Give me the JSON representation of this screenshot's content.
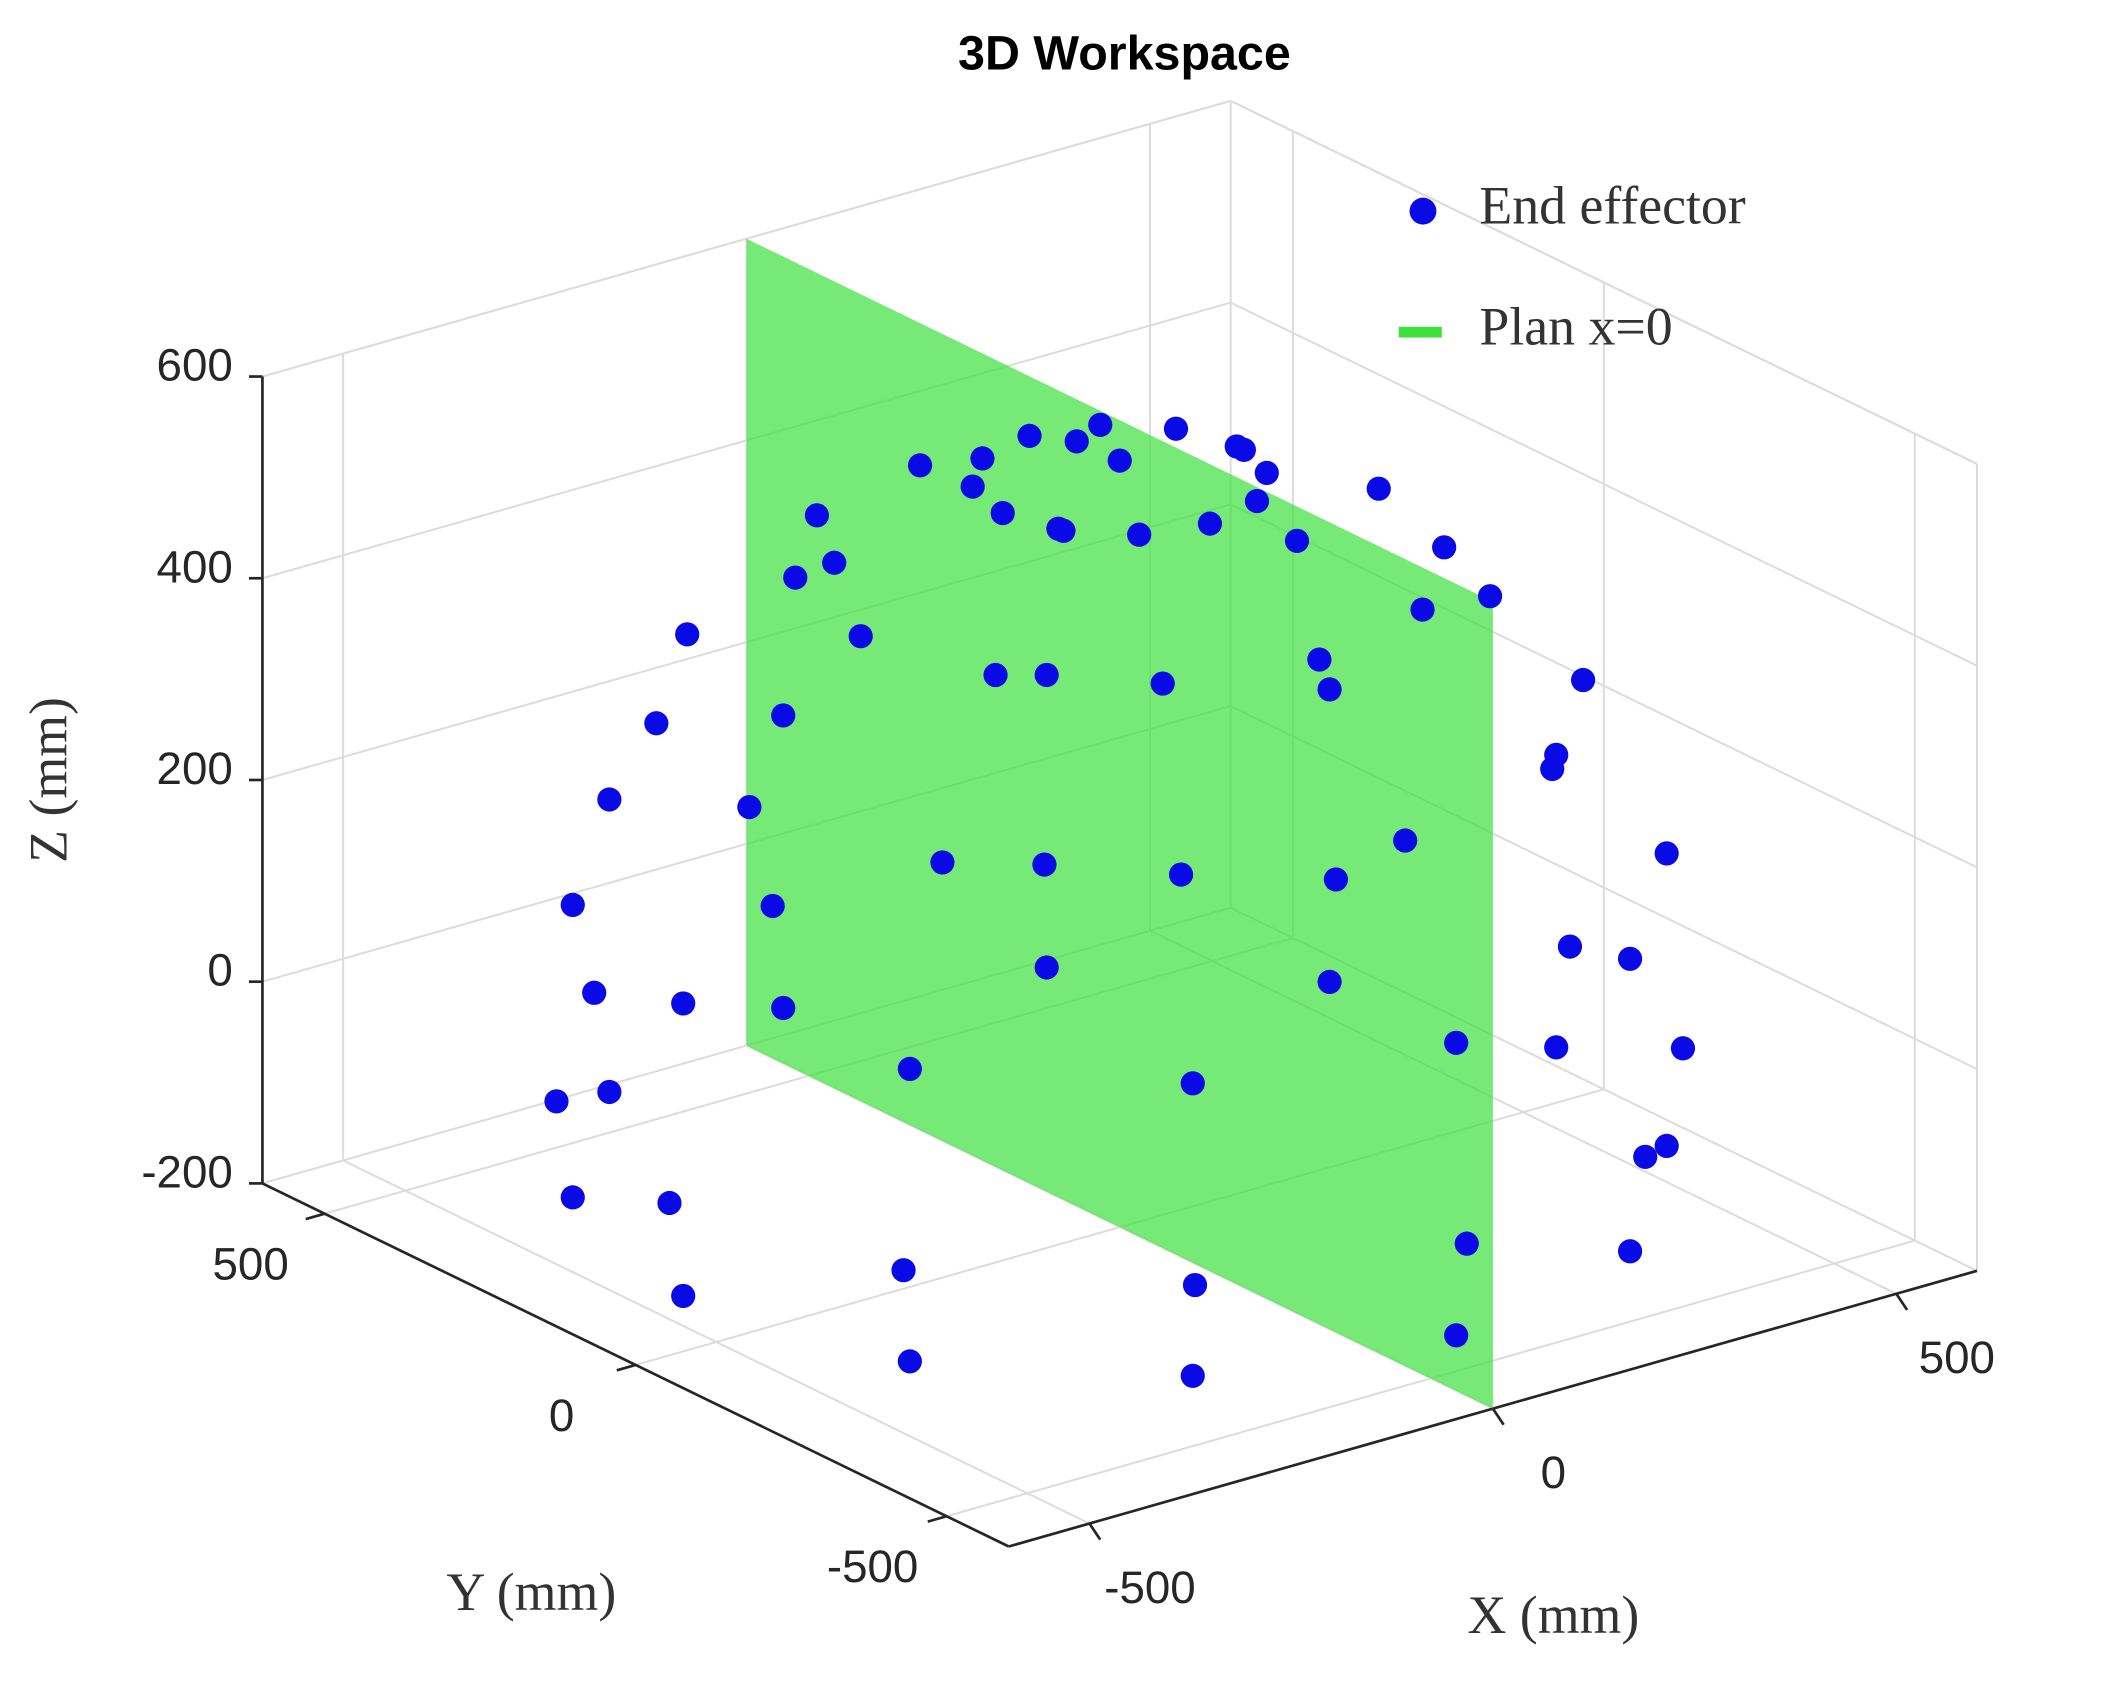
{
  "chart_data": {
    "type": "scatter3d",
    "title": "3D Workspace",
    "xlabel": "X (mm)",
    "ylabel": "Y (mm)",
    "zlabel": "Z (mm)",
    "xlim": [
      -600,
      600
    ],
    "ylim": [
      -600,
      600
    ],
    "zlim": [
      -200,
      600
    ],
    "xticks": [
      -500,
      0,
      500
    ],
    "yticks": [
      -500,
      0,
      500
    ],
    "zticks": [
      -200,
      0,
      200,
      400,
      600
    ],
    "grid": true,
    "legend": "northeast",
    "series": [
      {
        "name": "End effector",
        "color": "#0a0ae6",
        "x": [
          0,
          145,
          126,
          73,
          0,
          -73,
          -126,
          -145,
          -126,
          -73,
          0,
          73,
          126,
          321,
          278,
          161,
          0,
          -161,
          -278,
          -321,
          -278,
          -161,
          0,
          161,
          278,
          459,
          397,
          230,
          0,
          -230,
          -397,
          -459,
          -397,
          -230,
          0,
          230,
          397,
          541,
          469,
          271,
          0,
          -271,
          -469,
          -541,
          -469,
          -271,
          0,
          271,
          469,
          558,
          483,
          279,
          0,
          -279,
          -483,
          -558,
          -483,
          -279,
          0,
          279,
          483,
          541,
          469,
          271,
          0,
          -271,
          -469,
          -541,
          -469,
          -271,
          0,
          271,
          469
        ],
        "y": [
          0,
          0,
          73,
          126,
          145,
          126,
          73,
          0,
          -73,
          -126,
          -145,
          -126,
          -73,
          0,
          161,
          278,
          321,
          278,
          161,
          0,
          -161,
          -278,
          -321,
          -278,
          -161,
          0,
          230,
          397,
          459,
          397,
          230,
          0,
          -230,
          -397,
          -459,
          -397,
          -230,
          0,
          271,
          469,
          541,
          469,
          271,
          0,
          -271,
          -469,
          -541,
          -469,
          -271,
          0,
          279,
          483,
          558,
          483,
          279,
          0,
          -279,
          -483,
          -558,
          -483,
          -279,
          0,
          271,
          469,
          541,
          469,
          271,
          0,
          -271,
          -469,
          -541,
          -469,
          -271
        ],
        "z": [
          560,
          541,
          541,
          541,
          541,
          541,
          541,
          541,
          541,
          541,
          541,
          541,
          541,
          459,
          459,
          459,
          459,
          459,
          459,
          459,
          459,
          459,
          459,
          459,
          459,
          321,
          321,
          321,
          321,
          321,
          321,
          321,
          321,
          321,
          321,
          321,
          321,
          145,
          145,
          145,
          145,
          145,
          145,
          145,
          145,
          145,
          145,
          145,
          145,
          -49,
          -49,
          -49,
          -49,
          -49,
          -49,
          -49,
          -49,
          -49,
          -49,
          -49,
          -49,
          -145,
          -145,
          -145,
          -145,
          -145,
          -145,
          -145,
          -145,
          -145,
          -145,
          -145,
          -145
        ]
      },
      {
        "name": "Plan x=0",
        "color": "#3de03d",
        "x": 0
      }
    ]
  }
}
